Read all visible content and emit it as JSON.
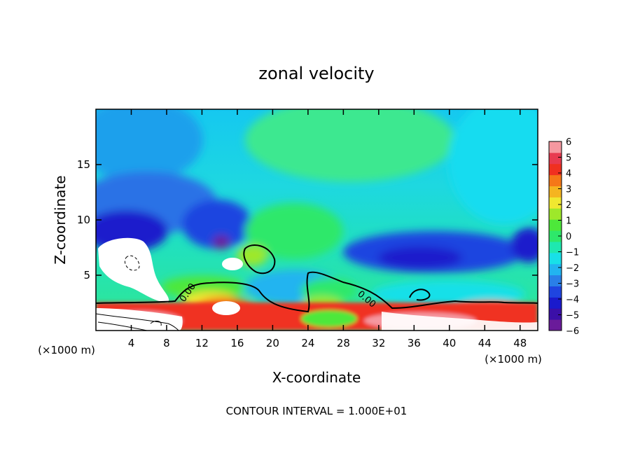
{
  "chart_data": {
    "type": "heatmap",
    "title": "zonal velocity",
    "xlabel": "X-coordinate",
    "ylabel": "Z-coordinate",
    "x_unit_note": "(×1000 m)",
    "y_unit_note": "(×1000 m)",
    "xlim": [
      0,
      50
    ],
    "ylim": [
      0,
      20
    ],
    "x_ticks": [
      4,
      8,
      12,
      16,
      20,
      24,
      28,
      32,
      36,
      40,
      44,
      48
    ],
    "y_ticks": [
      5,
      10,
      15
    ],
    "colorbar": {
      "min": -6,
      "max": 6,
      "ticks": [
        6,
        5,
        4,
        3,
        2,
        1,
        0,
        -1,
        -2,
        -3,
        -4,
        -5,
        -6
      ],
      "colors": [
        "#6a1b9a",
        "#3b0fa8",
        "#1a1acc",
        "#1f45e0",
        "#2a7fe8",
        "#22b4f0",
        "#18e0e8",
        "#1ee8b0",
        "#2ee86a",
        "#4de83a",
        "#9ee82a",
        "#f0e830",
        "#f5b420",
        "#f57818",
        "#f03020",
        "#e83a50",
        "#f598a0"
      ]
    },
    "contour_label": "0.00",
    "annotation": "CONTOUR INTERVAL = 1.000E+01"
  }
}
